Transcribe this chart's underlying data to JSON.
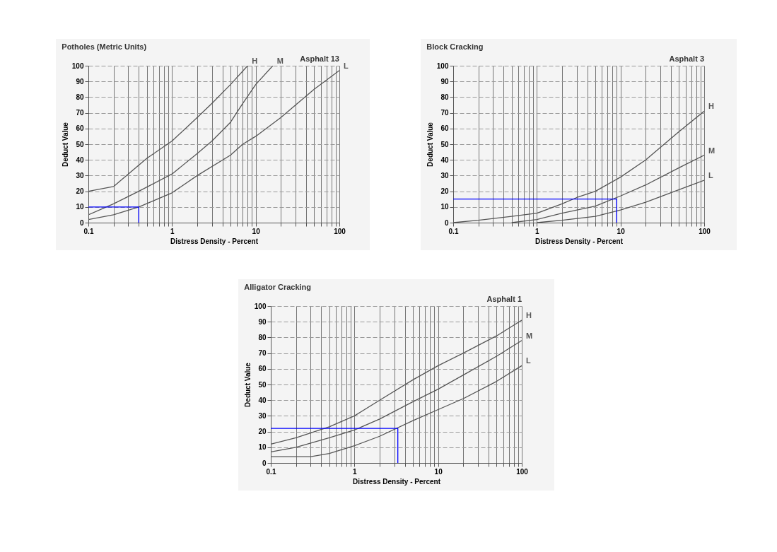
{
  "chart_data": [
    {
      "type": "line",
      "title": "Potholes (Metric Units)",
      "subtitle": "Asphalt 13",
      "xlabel": "Distress Density - Percent",
      "ylabel": "Deduct Value",
      "log": "x",
      "grid": true,
      "legend": false,
      "xlim": [
        0.1,
        100
      ],
      "ylim": [
        0,
        100
      ],
      "xticks": [
        0.1,
        {
          "value": 0.2,
          "label": null
        },
        {
          "value": 0.3,
          "label": null
        },
        {
          "value": 0.4,
          "label": null
        },
        {
          "value": 0.5,
          "label": null
        },
        {
          "value": 0.6,
          "label": null
        },
        {
          "value": 0.7,
          "label": null
        },
        {
          "value": 0.8,
          "label": null
        },
        {
          "value": 0.9,
          "label": null
        },
        1,
        {
          "value": 2,
          "label": null
        },
        {
          "value": 3,
          "label": null
        },
        {
          "value": 4,
          "label": null
        },
        {
          "value": 5,
          "label": null
        },
        {
          "value": 6,
          "label": null
        },
        {
          "value": 7,
          "label": null
        },
        {
          "value": 8,
          "label": null
        },
        {
          "value": 9,
          "label": null
        },
        10,
        {
          "value": 20,
          "label": null
        },
        {
          "value": 30,
          "label": null
        },
        {
          "value": 40,
          "label": null
        },
        {
          "value": 50,
          "label": null
        },
        {
          "value": 60,
          "label": null
        },
        {
          "value": 70,
          "label": null
        },
        {
          "value": 80,
          "label": null
        },
        {
          "value": 90,
          "label": null
        },
        100
      ],
      "yticks": [
        0,
        10,
        20,
        30,
        40,
        50,
        60,
        70,
        80,
        90,
        100
      ],
      "series": [
        {
          "name": "H",
          "color": "#555555",
          "x": [
            0.1,
            0.2,
            0.3,
            0.5,
            1,
            2,
            3,
            5,
            8
          ],
          "values": [
            20,
            23,
            31,
            41,
            52,
            67,
            76,
            88,
            100
          ]
        },
        {
          "name": "M",
          "color": "#555555",
          "x": [
            0.1,
            0.2,
            0.4,
            1,
            2,
            3,
            5,
            7,
            10,
            16
          ],
          "values": [
            5,
            12,
            20,
            31,
            44,
            52,
            64,
            76,
            88,
            100
          ]
        },
        {
          "name": "L",
          "color": "#555555",
          "x": [
            0.1,
            0.2,
            0.4,
            1,
            2,
            5,
            7,
            10,
            20,
            30,
            50,
            100
          ],
          "values": [
            2,
            5,
            10,
            19,
            30,
            43,
            50,
            55,
            67,
            75,
            85,
            97
          ]
        },
        {
          "type": "line",
          "color": "#0000ff",
          "x": [
            0.1,
            0.4,
            0.4
          ],
          "values": [
            10,
            10,
            0
          ]
        }
      ]
    },
    {
      "type": "line",
      "title": "Block Cracking",
      "subtitle": "Asphalt 3",
      "xlabel": "Distress Density - Percent",
      "ylabel": "Deduct Value",
      "log": "x",
      "grid": true,
      "legend": false,
      "xlim": [
        0.1,
        100
      ],
      "ylim": [
        0,
        100
      ],
      "xticks": [
        0.1,
        {
          "value": 0.2,
          "label": null
        },
        {
          "value": 0.3,
          "label": null
        },
        {
          "value": 0.4,
          "label": null
        },
        {
          "value": 0.5,
          "label": null
        },
        {
          "value": 0.6,
          "label": null
        },
        {
          "value": 0.7,
          "label": null
        },
        {
          "value": 0.8,
          "label": null
        },
        {
          "value": 0.9,
          "label": null
        },
        1,
        {
          "value": 2,
          "label": null
        },
        {
          "value": 3,
          "label": null
        },
        {
          "value": 4,
          "label": null
        },
        {
          "value": 5,
          "label": null
        },
        {
          "value": 6,
          "label": null
        },
        {
          "value": 7,
          "label": null
        },
        {
          "value": 8,
          "label": null
        },
        {
          "value": 9,
          "label": null
        },
        10,
        {
          "value": 20,
          "label": null
        },
        {
          "value": 30,
          "label": null
        },
        {
          "value": 40,
          "label": null
        },
        {
          "value": 50,
          "label": null
        },
        {
          "value": 60,
          "label": null
        },
        {
          "value": 70,
          "label": null
        },
        {
          "value": 80,
          "label": null
        },
        {
          "value": 90,
          "label": null
        },
        100
      ],
      "yticks": [
        0,
        10,
        20,
        30,
        40,
        50,
        60,
        70,
        80,
        90,
        100
      ],
      "series": [
        {
          "name": "H",
          "color": "#555555",
          "x": [
            0.1,
            0.2,
            0.5,
            1,
            2,
            3,
            5,
            10,
            20,
            30,
            50,
            100
          ],
          "values": [
            0,
            1.5,
            4,
            6,
            12,
            16,
            20,
            29,
            40,
            48,
            58,
            71
          ]
        },
        {
          "name": "M",
          "color": "#555555",
          "x": [
            0.5,
            1,
            2,
            5,
            10,
            20,
            50,
            100
          ],
          "values": [
            0,
            2,
            6,
            10.5,
            17,
            24,
            35,
            43
          ]
        },
        {
          "name": "L",
          "color": "#555555",
          "x": [
            1,
            2,
            5,
            10,
            20,
            50,
            100
          ],
          "values": [
            0,
            1.5,
            4,
            8,
            13,
            21,
            27
          ]
        },
        {
          "type": "line",
          "color": "#0000ff",
          "x": [
            0.1,
            9,
            9
          ],
          "values": [
            15,
            15,
            0
          ]
        }
      ]
    },
    {
      "type": "line",
      "title": "Alligator Cracking",
      "subtitle": "Asphalt 1",
      "xlabel": "Distress Density - Percent",
      "ylabel": "Deduct Value",
      "log": "x",
      "grid": true,
      "legend": false,
      "xlim": [
        0.1,
        100
      ],
      "ylim": [
        0,
        100
      ],
      "xticks": [
        0.1,
        {
          "value": 0.2,
          "label": null
        },
        {
          "value": 0.3,
          "label": null
        },
        {
          "value": 0.4,
          "label": null
        },
        {
          "value": 0.5,
          "label": null
        },
        {
          "value": 0.6,
          "label": null
        },
        {
          "value": 0.7,
          "label": null
        },
        {
          "value": 0.8,
          "label": null
        },
        {
          "value": 0.9,
          "label": null
        },
        1,
        {
          "value": 2,
          "label": null
        },
        {
          "value": 3,
          "label": null
        },
        {
          "value": 4,
          "label": null
        },
        {
          "value": 5,
          "label": null
        },
        {
          "value": 6,
          "label": null
        },
        {
          "value": 7,
          "label": null
        },
        {
          "value": 8,
          "label": null
        },
        {
          "value": 9,
          "label": null
        },
        10,
        {
          "value": 20,
          "label": null
        },
        {
          "value": 30,
          "label": null
        },
        {
          "value": 40,
          "label": null
        },
        {
          "value": 50,
          "label": null
        },
        {
          "value": 60,
          "label": null
        },
        {
          "value": 70,
          "label": null
        },
        {
          "value": 80,
          "label": null
        },
        {
          "value": 90,
          "label": null
        },
        100
      ],
      "yticks": [
        0,
        10,
        20,
        30,
        40,
        50,
        60,
        70,
        80,
        90,
        100
      ],
      "series": [
        {
          "name": "H",
          "color": "#555555",
          "x": [
            0.1,
            0.2,
            0.5,
            1,
            2,
            5,
            10,
            20,
            50,
            100
          ],
          "values": [
            12,
            16,
            23,
            30,
            40,
            53,
            62,
            70,
            81,
            91
          ]
        },
        {
          "name": "M",
          "color": "#555555",
          "x": [
            0.1,
            0.2,
            0.5,
            1,
            2,
            5,
            10,
            20,
            50,
            100
          ],
          "values": [
            7,
            10,
            16,
            21,
            28,
            39,
            47,
            56,
            68,
            78
          ]
        },
        {
          "name": "L",
          "color": "#555555",
          "x": [
            0.1,
            0.3,
            0.5,
            1,
            2,
            5,
            10,
            20,
            50,
            100
          ],
          "values": [
            4,
            4,
            6,
            11,
            17,
            27,
            34,
            41,
            52,
            62
          ]
        },
        {
          "type": "line",
          "color": "#0000ff",
          "x": [
            0.1,
            3.3,
            3.3
          ],
          "values": [
            22,
            22,
            0
          ]
        }
      ]
    }
  ]
}
